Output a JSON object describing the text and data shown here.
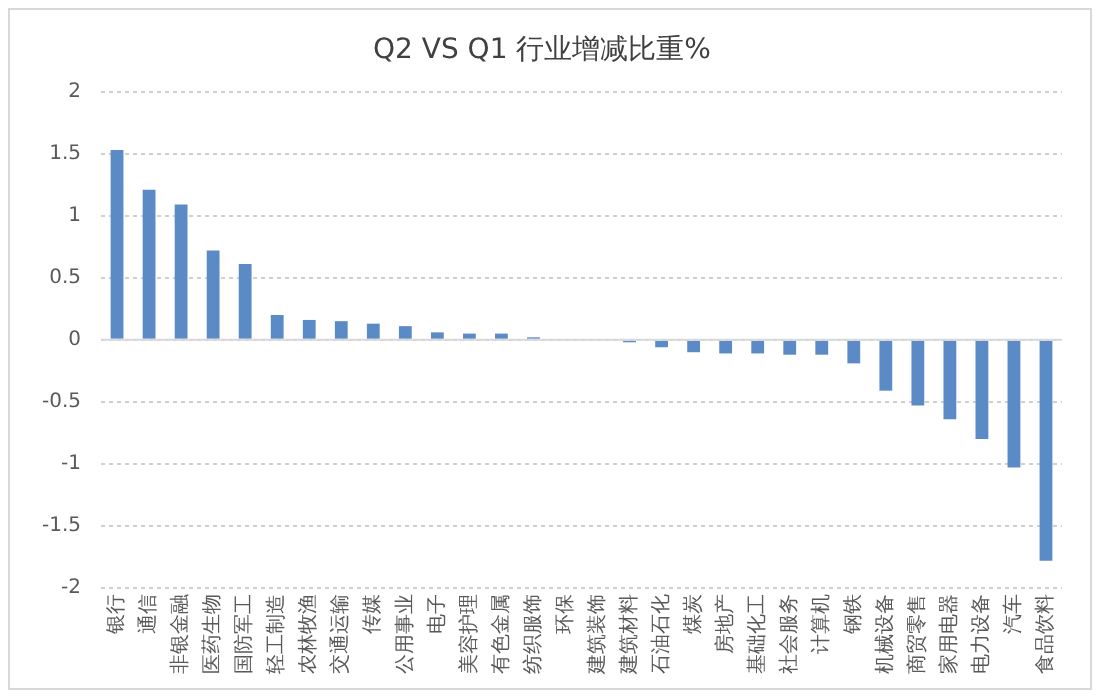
{
  "chart_data": {
    "type": "bar",
    "title": "Q2 VS Q1 行业增减比重%",
    "categories": [
      "银行",
      "通信",
      "非银金融",
      "医药生物",
      "国防军工",
      "轻工制造",
      "农林牧渔",
      "交通运输",
      "传媒",
      "公用事业",
      "电子",
      "美容护理",
      "有色金属",
      "纺织服饰",
      "环保",
      "建筑装饰",
      "建筑材料",
      "石油石化",
      "煤炭",
      "房地产",
      "基础化工",
      "社会服务",
      "计算机",
      "钢铁",
      "机械设备",
      "商贸零售",
      "家用电器",
      "电力设备",
      "汽车",
      "食品饮料"
    ],
    "values": [
      1.53,
      1.21,
      1.09,
      0.72,
      0.61,
      0.2,
      0.16,
      0.15,
      0.13,
      0.11,
      0.06,
      0.05,
      0.05,
      0.02,
      0,
      0,
      -0.02,
      -0.06,
      -0.1,
      -0.11,
      -0.11,
      -0.12,
      -0.12,
      -0.19,
      -0.41,
      -0.53,
      -0.64,
      -0.8,
      -1.03,
      -1.78
    ],
    "color": "#5b8bc6",
    "ylim": [
      -2,
      2
    ],
    "yticks": [
      -2,
      -1.5,
      -1,
      -0.5,
      0,
      0.5,
      1,
      1.5,
      2
    ],
    "grid": "y",
    "legend": false
  }
}
